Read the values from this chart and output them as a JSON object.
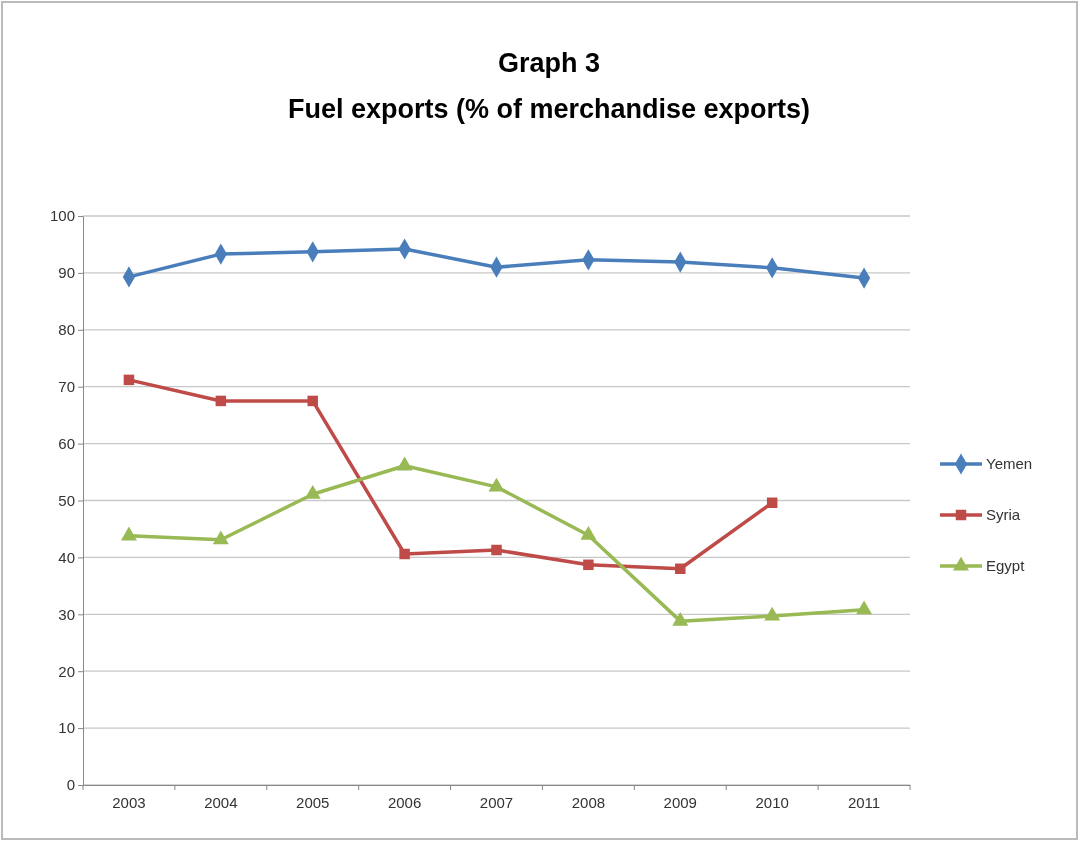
{
  "chart_data": {
    "type": "line",
    "title": "Graph 3",
    "subtitle": "Fuel exports (% of merchandise exports)",
    "categories": [
      "2003",
      "2004",
      "2005",
      "2006",
      "2007",
      "2008",
      "2009",
      "2010",
      "2011"
    ],
    "series": [
      {
        "name": "Yemen",
        "color": "#4a7ebb",
        "marker": "diamond",
        "values": [
          89.3,
          93.3,
          93.7,
          94.2,
          91.0,
          92.3,
          91.9,
          90.9,
          89.1
        ]
      },
      {
        "name": "Syria",
        "color": "#be4b48",
        "marker": "square",
        "values": [
          71.2,
          67.5,
          67.5,
          40.6,
          41.3,
          38.7,
          38.0,
          49.6,
          null
        ]
      },
      {
        "name": "Egypt",
        "color": "#98b954",
        "marker": "triangle",
        "values": [
          43.8,
          43.1,
          51.1,
          56.1,
          52.4,
          43.9,
          28.8,
          29.7,
          30.8
        ]
      }
    ],
    "ylim": [
      0,
      100
    ],
    "yticks": [
      0,
      10,
      20,
      30,
      40,
      50,
      60,
      70,
      80,
      90,
      100
    ],
    "grid": "y",
    "legend": "right",
    "line_style": "solid"
  }
}
